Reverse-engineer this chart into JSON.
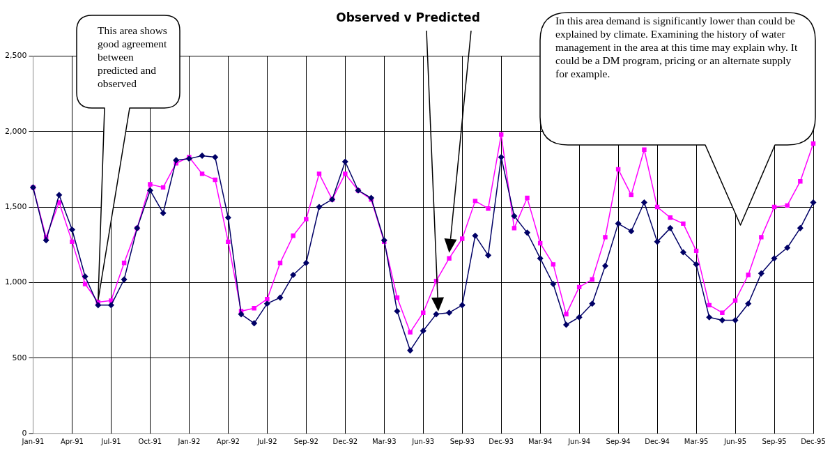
{
  "chart_data": {
    "type": "line",
    "title": "Observed v Predicted",
    "categories": [
      "Jan-91",
      null,
      null,
      "Apr-91",
      null,
      null,
      "Jul-91",
      null,
      null,
      "Oct-91",
      null,
      null,
      "Jan-92",
      null,
      null,
      "Apr-92",
      null,
      null,
      "Jul-92",
      null,
      null,
      "Sep-92",
      null,
      null,
      "Dec-92",
      null,
      null,
      "Mar-93",
      null,
      null,
      "Jun-93",
      null,
      null,
      "Sep-93",
      null,
      null,
      "Dec-93",
      null,
      null,
      "Mar-94",
      null,
      null,
      "Jun-94",
      null,
      null,
      "Sep-94",
      null,
      null,
      "Dec-94",
      null,
      null,
      "Mar-95",
      null,
      null,
      "Jun-95",
      null,
      null,
      "Sep-95",
      null,
      null,
      "Dec-95"
    ],
    "series": [
      {
        "color": "#000066",
        "marker": "diamond",
        "values": [
          1630,
          1280,
          1580,
          1350,
          1040,
          850,
          850,
          1020,
          1360,
          1610,
          1460,
          1810,
          1820,
          1840,
          1830,
          1430,
          790,
          730,
          860,
          900,
          1050,
          1130,
          1500,
          1550,
          1800,
          1610,
          1560,
          1280,
          810,
          550,
          680,
          790,
          800,
          850,
          1310,
          1180,
          1830,
          1440,
          1330,
          1160,
          990,
          720,
          770,
          860,
          1110,
          1390,
          1340,
          1530,
          1270,
          1360,
          1200,
          1120,
          770,
          750,
          750,
          860,
          1060,
          1160,
          1230,
          1360,
          1530
        ]
      },
      {
        "color": "#ff00ff",
        "marker": "square",
        "values": [
          1630,
          1300,
          1530,
          1270,
          990,
          870,
          880,
          1130,
          1360,
          1650,
          1630,
          1790,
          1830,
          1720,
          1680,
          1270,
          810,
          830,
          890,
          1130,
          1310,
          1420,
          1720,
          1550,
          1720,
          1610,
          1550,
          1270,
          900,
          670,
          800,
          1010,
          1160,
          1290,
          1540,
          1490,
          1980,
          1360,
          1560,
          1260,
          1120,
          790,
          970,
          1020,
          1300,
          1750,
          1580,
          1880,
          1500,
          1430,
          1390,
          1210,
          850,
          800,
          880,
          1050,
          1300,
          1500,
          1510,
          1670,
          1920
        ]
      }
    ],
    "ylim": [
      0,
      2500
    ],
    "yticks": [
      {
        "value": 0,
        "label": "0"
      },
      {
        "value": 500,
        "label": "500"
      },
      {
        "value": 1000,
        "label": "1,000"
      },
      {
        "value": 1500,
        "label": "1,500"
      },
      {
        "value": 2000,
        "label": "2,000"
      },
      {
        "value": 2500,
        "label": "2,500"
      }
    ],
    "grid": true,
    "legend": false,
    "line_style": "solid",
    "annotations": [
      "This area shows good agreement between predicted and observed",
      "In this area demand is significantly lower than could be explained by climate. Examining the history of water management in the area at this time may explain why.  It could be a DM program, pricing or an alternate supply for example."
    ]
  }
}
